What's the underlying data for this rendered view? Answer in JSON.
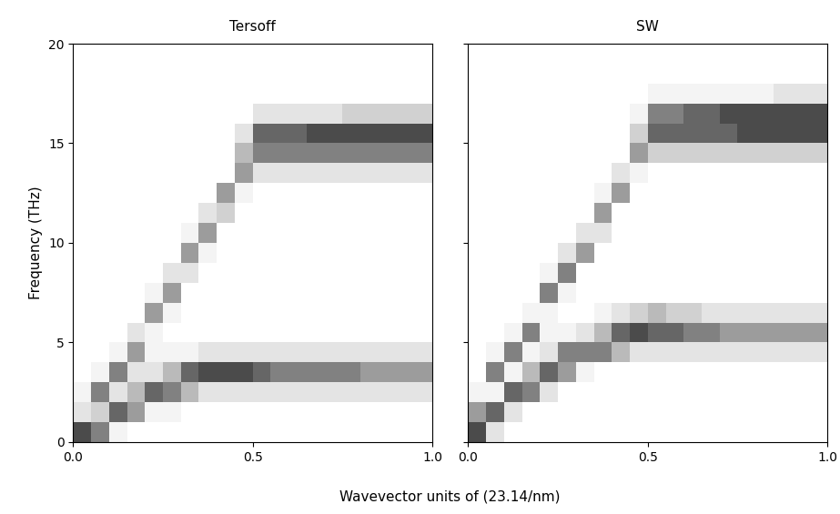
{
  "chart_data": [
    {
      "type": "heatmap",
      "title": "Tersoff",
      "xlabel": "Wavevector units of (23.14/nm)",
      "ylabel": "Frequency (THz)",
      "color": "Greys",
      "x_edges": [
        0.0,
        0.05,
        0.1,
        0.15,
        0.2,
        0.25,
        0.3,
        0.35,
        0.4,
        0.45,
        0.5,
        0.55,
        0.6,
        0.65,
        0.7,
        0.75,
        0.8,
        0.85,
        0.9,
        0.95,
        1.0
      ],
      "y_edges": [
        0,
        1,
        2,
        3,
        4,
        5,
        6,
        7,
        8,
        9,
        10,
        11,
        12,
        13,
        14,
        15,
        16,
        17,
        18,
        19,
        20
      ],
      "cells": [
        [
          8,
          6,
          1,
          0,
          0,
          0,
          0,
          0,
          0,
          0,
          0,
          0,
          0,
          0,
          0,
          0,
          0,
          0,
          0,
          0
        ],
        [
          2,
          3,
          7,
          5,
          1,
          1,
          0,
          0,
          0,
          0,
          0,
          0,
          0,
          0,
          0,
          0,
          0,
          0,
          0,
          0
        ],
        [
          1,
          6,
          2,
          4,
          7,
          6,
          4,
          2,
          2,
          2,
          2,
          2,
          2,
          2,
          2,
          2,
          2,
          2,
          2,
          2
        ],
        [
          0,
          1,
          6,
          2,
          2,
          4,
          7,
          8,
          8,
          8,
          7,
          6,
          6,
          6,
          6,
          6,
          5,
          5,
          5,
          5
        ],
        [
          0,
          0,
          1,
          5,
          1,
          1,
          1,
          2,
          2,
          2,
          2,
          2,
          2,
          2,
          2,
          2,
          2,
          2,
          2,
          2
        ],
        [
          0,
          0,
          0,
          2,
          1,
          0,
          0,
          0,
          0,
          0,
          0,
          0,
          0,
          0,
          0,
          0,
          0,
          0,
          0,
          0
        ],
        [
          0,
          0,
          0,
          0,
          5,
          1,
          0,
          0,
          0,
          0,
          0,
          0,
          0,
          0,
          0,
          0,
          0,
          0,
          0,
          0
        ],
        [
          0,
          0,
          0,
          0,
          1,
          5,
          0,
          0,
          0,
          0,
          0,
          0,
          0,
          0,
          0,
          0,
          0,
          0,
          0,
          0
        ],
        [
          0,
          0,
          0,
          0,
          0,
          2,
          2,
          0,
          0,
          0,
          0,
          0,
          0,
          0,
          0,
          0,
          0,
          0,
          0,
          0
        ],
        [
          0,
          0,
          0,
          0,
          0,
          0,
          5,
          1,
          0,
          0,
          0,
          0,
          0,
          0,
          0,
          0,
          0,
          0,
          0,
          0
        ],
        [
          0,
          0,
          0,
          0,
          0,
          0,
          1,
          5,
          0,
          0,
          0,
          0,
          0,
          0,
          0,
          0,
          0,
          0,
          0,
          0
        ],
        [
          0,
          0,
          0,
          0,
          0,
          0,
          0,
          2,
          3,
          0,
          0,
          0,
          0,
          0,
          0,
          0,
          0,
          0,
          0,
          0
        ],
        [
          0,
          0,
          0,
          0,
          0,
          0,
          0,
          0,
          5,
          1,
          0,
          0,
          0,
          0,
          0,
          0,
          0,
          0,
          0,
          0
        ],
        [
          0,
          0,
          0,
          0,
          0,
          0,
          0,
          0,
          0,
          5,
          2,
          2,
          2,
          2,
          2,
          2,
          2,
          2,
          2,
          2
        ],
        [
          0,
          0,
          0,
          0,
          0,
          0,
          0,
          0,
          0,
          4,
          6,
          6,
          6,
          6,
          6,
          6,
          6,
          6,
          6,
          6
        ],
        [
          0,
          0,
          0,
          0,
          0,
          0,
          0,
          0,
          0,
          2,
          7,
          7,
          7,
          8,
          8,
          8,
          8,
          8,
          8,
          8
        ],
        [
          0,
          0,
          0,
          0,
          0,
          0,
          0,
          0,
          0,
          0,
          2,
          2,
          2,
          2,
          2,
          3,
          3,
          3,
          3,
          3
        ],
        [
          0,
          0,
          0,
          0,
          0,
          0,
          0,
          0,
          0,
          0,
          0,
          0,
          0,
          0,
          0,
          0,
          0,
          0,
          0,
          0
        ],
        [
          0,
          0,
          0,
          0,
          0,
          0,
          0,
          0,
          0,
          0,
          0,
          0,
          0,
          0,
          0,
          0,
          0,
          0,
          0,
          0
        ],
        [
          0,
          0,
          0,
          0,
          0,
          0,
          0,
          0,
          0,
          0,
          0,
          0,
          0,
          0,
          0,
          0,
          0,
          0,
          0,
          0
        ]
      ],
      "xlim": [
        0.0,
        1.0
      ],
      "xticks": [
        0.0,
        0.5,
        1.0
      ],
      "ylim": [
        0,
        20
      ],
      "yticks": [
        0,
        5,
        10,
        15,
        20
      ]
    },
    {
      "type": "heatmap",
      "title": "SW",
      "tick_labels": "x",
      "color": "Greys",
      "x_edges": [
        0.0,
        0.05,
        0.1,
        0.15,
        0.2,
        0.25,
        0.3,
        0.35,
        0.4,
        0.45,
        0.5,
        0.55,
        0.6,
        0.65,
        0.7,
        0.75,
        0.8,
        0.85,
        0.9,
        0.95,
        1.0
      ],
      "y_edges": [
        0,
        1,
        2,
        3,
        4,
        5,
        6,
        7,
        8,
        9,
        10,
        11,
        12,
        13,
        14,
        15,
        16,
        17,
        18,
        19,
        20
      ],
      "cells": [
        [
          8,
          2,
          0,
          0,
          0,
          0,
          0,
          0,
          0,
          0,
          0,
          0,
          0,
          0,
          0,
          0,
          0,
          0,
          0,
          0
        ],
        [
          5,
          7,
          2,
          0,
          0,
          0,
          0,
          0,
          0,
          0,
          0,
          0,
          0,
          0,
          0,
          0,
          0,
          0,
          0,
          0
        ],
        [
          1,
          1,
          7,
          6,
          2,
          0,
          0,
          0,
          0,
          0,
          0,
          0,
          0,
          0,
          0,
          0,
          0,
          0,
          0,
          0
        ],
        [
          0,
          6,
          1,
          4,
          7,
          5,
          1,
          0,
          0,
          0,
          0,
          0,
          0,
          0,
          0,
          0,
          0,
          0,
          0,
          0
        ],
        [
          0,
          1,
          6,
          1,
          2,
          6,
          6,
          6,
          4,
          2,
          2,
          2,
          2,
          2,
          2,
          2,
          2,
          2,
          2,
          2
        ],
        [
          0,
          0,
          1,
          6,
          1,
          1,
          2,
          4,
          7,
          8,
          7,
          7,
          6,
          6,
          5,
          5,
          5,
          5,
          5,
          5
        ],
        [
          0,
          0,
          0,
          1,
          1,
          0,
          0,
          1,
          2,
          3,
          4,
          3,
          3,
          2,
          2,
          2,
          2,
          2,
          2,
          2
        ],
        [
          0,
          0,
          0,
          0,
          6,
          1,
          0,
          0,
          0,
          0,
          0,
          0,
          0,
          0,
          0,
          0,
          0,
          0,
          0,
          0
        ],
        [
          0,
          0,
          0,
          0,
          1,
          6,
          0,
          0,
          0,
          0,
          0,
          0,
          0,
          0,
          0,
          0,
          0,
          0,
          0,
          0
        ],
        [
          0,
          0,
          0,
          0,
          0,
          2,
          5,
          0,
          0,
          0,
          0,
          0,
          0,
          0,
          0,
          0,
          0,
          0,
          0,
          0
        ],
        [
          0,
          0,
          0,
          0,
          0,
          0,
          2,
          2,
          0,
          0,
          0,
          0,
          0,
          0,
          0,
          0,
          0,
          0,
          0,
          0
        ],
        [
          0,
          0,
          0,
          0,
          0,
          0,
          0,
          5,
          0,
          0,
          0,
          0,
          0,
          0,
          0,
          0,
          0,
          0,
          0,
          0
        ],
        [
          0,
          0,
          0,
          0,
          0,
          0,
          0,
          1,
          5,
          0,
          0,
          0,
          0,
          0,
          0,
          0,
          0,
          0,
          0,
          0
        ],
        [
          0,
          0,
          0,
          0,
          0,
          0,
          0,
          0,
          2,
          1,
          0,
          0,
          0,
          0,
          0,
          0,
          0,
          0,
          0,
          0
        ],
        [
          0,
          0,
          0,
          0,
          0,
          0,
          0,
          0,
          0,
          5,
          3,
          3,
          3,
          3,
          3,
          3,
          3,
          3,
          3,
          3
        ],
        [
          0,
          0,
          0,
          0,
          0,
          0,
          0,
          0,
          0,
          3,
          7,
          7,
          7,
          7,
          7,
          8,
          8,
          8,
          8,
          8
        ],
        [
          0,
          0,
          0,
          0,
          0,
          0,
          0,
          0,
          0,
          1,
          6,
          6,
          7,
          7,
          8,
          8,
          8,
          8,
          8,
          8
        ],
        [
          0,
          0,
          0,
          0,
          0,
          0,
          0,
          0,
          0,
          0,
          1,
          1,
          1,
          1,
          1,
          1,
          1,
          2,
          2,
          2
        ],
        [
          0,
          0,
          0,
          0,
          0,
          0,
          0,
          0,
          0,
          0,
          0,
          0,
          0,
          0,
          0,
          0,
          0,
          0,
          0,
          0
        ],
        [
          0,
          0,
          0,
          0,
          0,
          0,
          0,
          0,
          0,
          0,
          0,
          0,
          0,
          0,
          0,
          0,
          0,
          0,
          0,
          0
        ]
      ],
      "xlim": [
        0.0,
        1.0
      ],
      "xticks": [
        0.0,
        0.5,
        1.0
      ],
      "ylim": [
        0,
        20
      ],
      "yticks": [
        0,
        5,
        10,
        15,
        20
      ]
    }
  ]
}
